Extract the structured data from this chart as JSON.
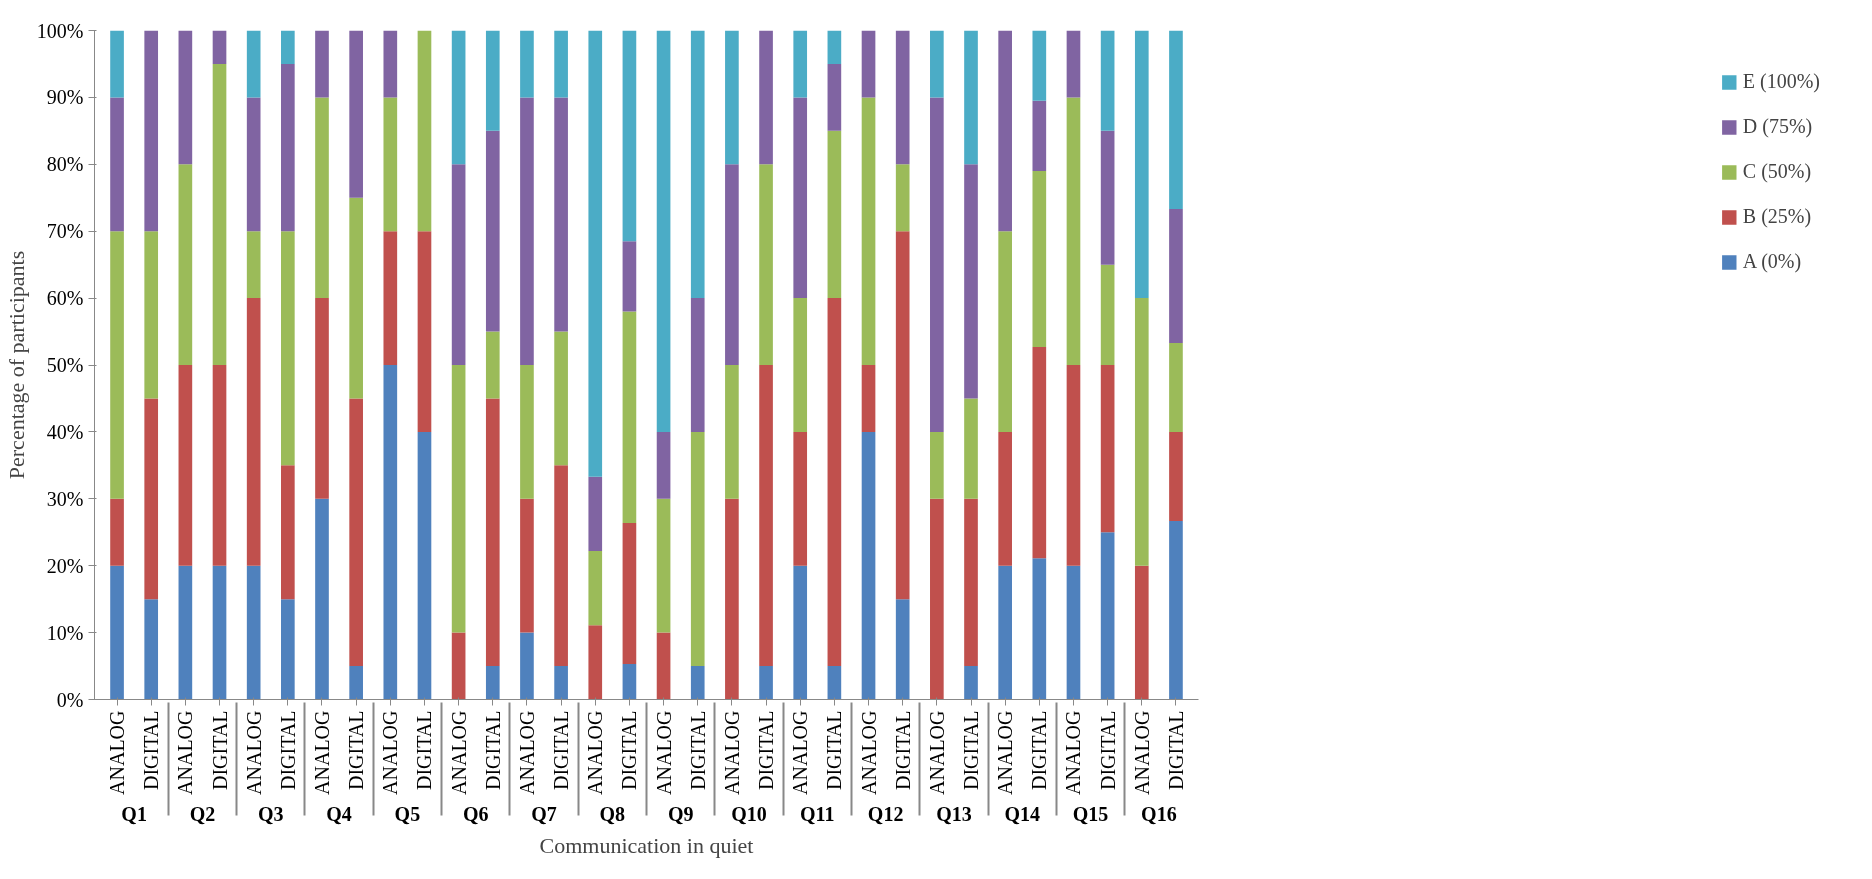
{
  "chart_data": {
    "type": "bar",
    "stacked": true,
    "xlabel": "Communication in quiet",
    "ylabel": "Percentage of participants",
    "categories": [
      "ANALOG",
      "DIGITAL",
      "ANALOG",
      "DIGITAL",
      "ANALOG",
      "DIGITAL",
      "ANALOG",
      "DIGITAL",
      "ANALOG",
      "DIGITAL",
      "ANALOG",
      "DIGITAL",
      "ANALOG",
      "DIGITAL",
      "ANALOG",
      "DIGITAL",
      "ANALOG",
      "DIGITAL",
      "ANALOG",
      "DIGITAL",
      "ANALOG",
      "DIGITAL",
      "ANALOG",
      "DIGITAL",
      "ANALOG",
      "DIGITAL",
      "ANALOG",
      "DIGITAL",
      "ANALOG",
      "DIGITAL",
      "ANALOG",
      "DIGITAL"
    ],
    "annotations": [
      "Q1",
      "Q2",
      "Q3",
      "Q4",
      "Q5",
      "Q6",
      "Q7",
      "Q8",
      "Q9",
      "Q10",
      "Q11",
      "Q12",
      "Q13",
      "Q14",
      "Q15",
      "Q16"
    ],
    "series": [
      {
        "name": "A (0%)",
        "color": "#4f81bd",
        "values": [
          20,
          15,
          20,
          20,
          20,
          15,
          30,
          5,
          50,
          40,
          0,
          5,
          10,
          5,
          0,
          5.3,
          0,
          5,
          0,
          5,
          20,
          5,
          40,
          15,
          0,
          5,
          20,
          21.1,
          20,
          25,
          0,
          26.7
        ]
      },
      {
        "name": "B (25%)",
        "color": "#c0504d",
        "values": [
          10,
          30,
          30,
          30,
          40,
          20,
          30,
          40,
          20,
          30,
          10,
          40,
          20,
          30,
          11.1,
          21.1,
          10,
          0,
          30,
          45,
          20,
          55,
          10,
          55,
          30,
          25,
          20,
          31.6,
          30,
          25,
          20,
          13.3
        ]
      },
      {
        "name": "C (50%)",
        "color": "#9bbb59",
        "values": [
          40,
          25,
          30,
          45,
          10,
          35,
          30,
          30,
          20,
          30,
          40,
          10,
          20,
          20,
          11.1,
          31.6,
          20,
          35,
          20,
          30,
          20,
          25,
          40,
          10,
          10,
          15,
          30,
          26.3,
          40,
          15,
          40,
          13.3
        ]
      },
      {
        "name": "D (75%)",
        "color": "#8064a2",
        "values": [
          20,
          30,
          20,
          5,
          20,
          25,
          10,
          25,
          10,
          0,
          30,
          30,
          40,
          35,
          11.1,
          10.5,
          10,
          20,
          30,
          20,
          30,
          10,
          10,
          20,
          50,
          35,
          30,
          10.5,
          10,
          20,
          0,
          20
        ]
      },
      {
        "name": "E (100%)",
        "color": "#4bacc6",
        "values": [
          10,
          0,
          0,
          0,
          10,
          5,
          0,
          0,
          0,
          0,
          20,
          15,
          10,
          10,
          66.7,
          31.6,
          60,
          40,
          20,
          0,
          10,
          5,
          0,
          0,
          10,
          20,
          0,
          10.5,
          0,
          15,
          40,
          26.7
        ]
      }
    ],
    "ylim": [
      0,
      100
    ],
    "yticks": [
      {
        "value": 0,
        "label": "0%"
      },
      {
        "value": 10,
        "label": "10%"
      },
      {
        "value": 20,
        "label": "20%"
      },
      {
        "value": 30,
        "label": "30%"
      },
      {
        "value": 40,
        "label": "40%"
      },
      {
        "value": 50,
        "label": "50%"
      },
      {
        "value": 60,
        "label": "60%"
      },
      {
        "value": 70,
        "label": "70%"
      },
      {
        "value": 80,
        "label": "80%"
      },
      {
        "value": 90,
        "label": "90%"
      },
      {
        "value": 100,
        "label": "100%"
      }
    ],
    "grid": false,
    "legend": "right"
  }
}
